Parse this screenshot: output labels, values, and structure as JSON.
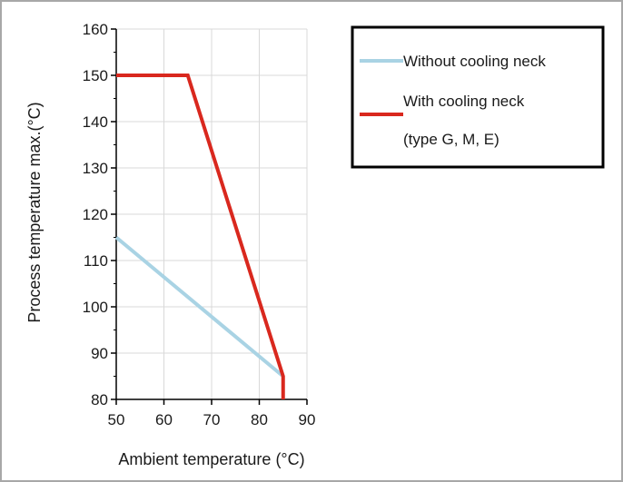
{
  "chart_data": {
    "type": "line",
    "xlabel": "Ambient temperature (°C)",
    "ylabel": "Process temperature max.(°C)",
    "xlim": [
      50,
      90
    ],
    "ylim": [
      80,
      160
    ],
    "xticks": [
      50,
      60,
      70,
      80,
      90
    ],
    "yticks": [
      80,
      90,
      100,
      110,
      120,
      130,
      140,
      150,
      160
    ],
    "grid": true,
    "legend_position": "top-right",
    "series": [
      {
        "name": "Without cooling neck",
        "color": "#a9d3e4",
        "points": [
          [
            50,
            115
          ],
          [
            85,
            85
          ]
        ]
      },
      {
        "name": "With cooling neck",
        "name_line2": "(type G, M, E)",
        "color": "#d9281e",
        "points": [
          [
            50,
            150
          ],
          [
            65,
            150
          ],
          [
            85,
            85
          ],
          [
            85,
            80
          ]
        ]
      }
    ]
  }
}
